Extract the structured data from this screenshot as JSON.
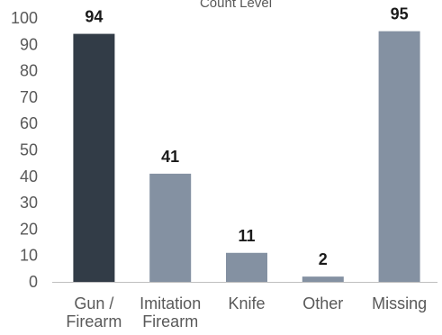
{
  "chart_data": {
    "type": "bar",
    "title": "Count Level",
    "categories": [
      [
        "Gun /",
        "Firearm"
      ],
      [
        "Imitation",
        "Firearm"
      ],
      [
        "Knife"
      ],
      [
        "Other"
      ],
      [
        "Missing"
      ]
    ],
    "values": [
      94,
      41,
      11,
      2,
      95
    ],
    "data_labels": [
      "94",
      "41",
      "11",
      "2",
      "95"
    ],
    "ylim": [
      0,
      100
    ],
    "yticks": [
      "0",
      "10",
      "20",
      "30",
      "40",
      "50",
      "60",
      "70",
      "80",
      "90",
      "100"
    ],
    "xlabel": "",
    "ylabel": "",
    "grid": false,
    "legend": "none",
    "colors": {
      "highlight": "#323c47",
      "default": "#8491a2",
      "axis": "#bfbfbf",
      "tick_text": "#595959",
      "label_text": "#1a1a1a"
    },
    "highlight_index": 0
  }
}
